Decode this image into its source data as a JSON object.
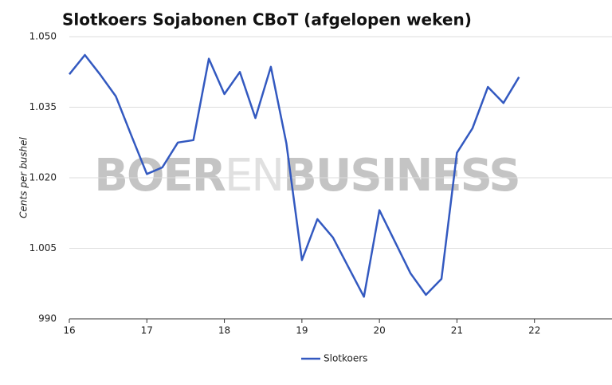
{
  "chart_data": {
    "type": "line",
    "title": "Slotkoers Sojabonen CBoT (afgelopen weken)",
    "y_label": "Cents per bushel",
    "watermark": [
      "BOER",
      "EN",
      "BUSINESS"
    ],
    "x": [
      16,
      16.2,
      16.4,
      16.6,
      16.8,
      17,
      17.2,
      17.4,
      17.6,
      17.8,
      18,
      18.2,
      18.4,
      18.6,
      18.8,
      19,
      19.2,
      19.4,
      19.6,
      19.8,
      20,
      20.2,
      20.4,
      20.6,
      20.8,
      21,
      21.2,
      21.4,
      21.6,
      21.8
    ],
    "series": [
      {
        "name": "Slotkoers",
        "color": "#3359c0",
        "values": [
          1042.0,
          1046.1,
          1041.9,
          1037.3,
          1029.0,
          1020.8,
          1022.2,
          1027.5,
          1028.0,
          1045.3,
          1037.8,
          1042.5,
          1032.7,
          1043.6,
          1027.3,
          1002.5,
          1011.2,
          1007.3,
          1001.0,
          994.7,
          1013.1,
          1006.4,
          999.7,
          995.1,
          998.5,
          1025.3,
          1030.5,
          1039.3,
          1035.9,
          1041.4
        ]
      }
    ],
    "xlim": [
      16,
      23
    ],
    "xticks": [
      16,
      17,
      18,
      19,
      20,
      21,
      22
    ],
    "ylim": [
      990,
      1050
    ],
    "yticks": [
      990,
      {
        "value": 1005,
        "label": "1.005"
      },
      {
        "value": 1020,
        "label": "1.020"
      },
      {
        "value": 1035,
        "label": "1.035"
      },
      {
        "value": 1050,
        "label": "1.050"
      }
    ],
    "grid": true,
    "legend": "bottom"
  }
}
